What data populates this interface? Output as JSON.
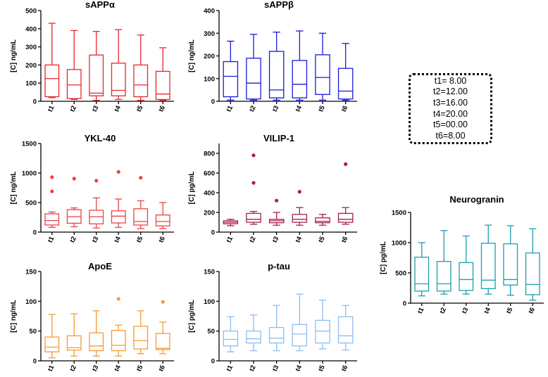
{
  "legend": {
    "lines": [
      "t1= 8.00",
      "t2=12.00",
      "t3=16.00",
      "t4=20.00",
      "t5=00.00",
      "t6=8.00"
    ]
  },
  "chart_data": [
    {
      "type": "box",
      "title": "sAPPα",
      "ylabel": "[C] ng/mL",
      "ylim": [
        0,
        500
      ],
      "yticks": [
        0,
        100,
        200,
        300,
        400,
        500
      ],
      "color": "#e8262b",
      "categories": [
        "t1",
        "t2",
        "t3",
        "t4",
        "t5",
        "t6"
      ],
      "boxes": [
        {
          "min": 20,
          "q1": 25,
          "median": 125,
          "q3": 200,
          "max": 430,
          "outliers": []
        },
        {
          "min": 10,
          "q1": 15,
          "median": 90,
          "q3": 175,
          "max": 390,
          "outliers": []
        },
        {
          "min": 5,
          "q1": 30,
          "median": 45,
          "q3": 255,
          "max": 385,
          "outliers": []
        },
        {
          "min": 10,
          "q1": 30,
          "median": 60,
          "q3": 210,
          "max": 395,
          "outliers": []
        },
        {
          "min": 5,
          "q1": 25,
          "median": 90,
          "q3": 200,
          "max": 365,
          "outliers": []
        },
        {
          "min": 5,
          "q1": 10,
          "median": 40,
          "q3": 165,
          "max": 295,
          "outliers": []
        }
      ]
    },
    {
      "type": "box",
      "title": "sAPPβ",
      "ylabel": "[C] ng/mL",
      "ylim": [
        0,
        400
      ],
      "yticks": [
        0,
        100,
        200,
        300,
        400
      ],
      "color": "#1a1adb",
      "categories": [
        "t1",
        "t2",
        "t3",
        "t4",
        "t5",
        "t6"
      ],
      "boxes": [
        {
          "min": 5,
          "q1": 20,
          "median": 110,
          "q3": 175,
          "max": 265,
          "outliers": []
        },
        {
          "min": 5,
          "q1": 10,
          "median": 80,
          "q3": 190,
          "max": 295,
          "outliers": []
        },
        {
          "min": 5,
          "q1": 15,
          "median": 50,
          "q3": 220,
          "max": 305,
          "outliers": []
        },
        {
          "min": 5,
          "q1": 15,
          "median": 75,
          "q3": 180,
          "max": 310,
          "outliers": []
        },
        {
          "min": 5,
          "q1": 30,
          "median": 105,
          "q3": 205,
          "max": 300,
          "outliers": []
        },
        {
          "min": 5,
          "q1": 10,
          "median": 45,
          "q3": 145,
          "max": 255,
          "outliers": []
        }
      ]
    },
    {
      "type": "box",
      "title": "YKL-40",
      "ylabel": "[C] ng/mL",
      "ylim": [
        0,
        1500
      ],
      "yticks": [
        0,
        500,
        1000,
        1500
      ],
      "color": "#ee4144",
      "categories": [
        "t1",
        "t2",
        "t3",
        "t4",
        "t5",
        "t6"
      ],
      "boxes": [
        {
          "min": 80,
          "q1": 120,
          "median": 195,
          "q3": 310,
          "max": 340,
          "outliers": [
            690,
            930
          ]
        },
        {
          "min": 90,
          "q1": 150,
          "median": 260,
          "q3": 380,
          "max": 410,
          "outliers": [
            905
          ]
        },
        {
          "min": 70,
          "q1": 140,
          "median": 260,
          "q3": 370,
          "max": 580,
          "outliers": [
            870
          ]
        },
        {
          "min": 80,
          "q1": 155,
          "median": 270,
          "q3": 360,
          "max": 560,
          "outliers": [
            1020
          ]
        },
        {
          "min": 60,
          "q1": 120,
          "median": 180,
          "q3": 395,
          "max": 530,
          "outliers": [
            920
          ]
        },
        {
          "min": 60,
          "q1": 105,
          "median": 180,
          "q3": 290,
          "max": 500,
          "outliers": []
        }
      ]
    },
    {
      "type": "box",
      "title": "VILIP-1",
      "ylabel": "[C] pg/mL",
      "ylim": [
        0,
        900
      ],
      "yticks": [
        0,
        200,
        400,
        600,
        800
      ],
      "color": "#a61e52",
      "categories": [
        "t1",
        "t2",
        "t3",
        "t4",
        "t5",
        "t6"
      ],
      "boxes": [
        {
          "min": 65,
          "q1": 85,
          "median": 100,
          "q3": 115,
          "max": 130,
          "outliers": []
        },
        {
          "min": 80,
          "q1": 100,
          "median": 130,
          "q3": 190,
          "max": 210,
          "outliers": [
            500,
            780
          ]
        },
        {
          "min": 70,
          "q1": 95,
          "median": 115,
          "q3": 130,
          "max": 200,
          "outliers": [
            320
          ]
        },
        {
          "min": 70,
          "q1": 100,
          "median": 130,
          "q3": 180,
          "max": 250,
          "outliers": [
            410
          ]
        },
        {
          "min": 70,
          "q1": 95,
          "median": 110,
          "q3": 145,
          "max": 180,
          "outliers": []
        },
        {
          "min": 80,
          "q1": 100,
          "median": 130,
          "q3": 190,
          "max": 250,
          "outliers": [
            690
          ]
        }
      ]
    },
    {
      "type": "box",
      "title": "ApoE",
      "ylabel": "[C] ng/mL",
      "ylim": [
        0,
        150
      ],
      "yticks": [
        0,
        50,
        100,
        150
      ],
      "color": "#f79a35",
      "categories": [
        "t1",
        "t2",
        "t3",
        "t4",
        "t5",
        "t6"
      ],
      "boxes": [
        {
          "min": 5,
          "q1": 15,
          "median": 23,
          "q3": 40,
          "max": 78,
          "outliers": []
        },
        {
          "min": 8,
          "q1": 18,
          "median": 22,
          "q3": 42,
          "max": 79,
          "outliers": []
        },
        {
          "min": 8,
          "q1": 17,
          "median": 25,
          "q3": 47,
          "max": 84,
          "outliers": []
        },
        {
          "min": 8,
          "q1": 17,
          "median": 26,
          "q3": 51,
          "max": 60,
          "outliers": [
            104
          ]
        },
        {
          "min": 12,
          "q1": 20,
          "median": 34,
          "q3": 58,
          "max": 84,
          "outliers": []
        },
        {
          "min": 12,
          "q1": 19,
          "median": 21,
          "q3": 46,
          "max": 65,
          "outliers": [
            99
          ]
        }
      ]
    },
    {
      "type": "box",
      "title": "p-tau",
      "ylabel": "[C] pg/mL",
      "ylim": [
        0,
        150
      ],
      "yticks": [
        0,
        50,
        100,
        150
      ],
      "color": "#8fbdf0",
      "categories": [
        "t1",
        "t2",
        "t3",
        "t4",
        "t5",
        "t6"
      ],
      "boxes": [
        {
          "min": 15,
          "q1": 25,
          "median": 36,
          "q3": 50,
          "max": 74,
          "outliers": []
        },
        {
          "min": 17,
          "q1": 30,
          "median": 37,
          "q3": 50,
          "max": 77,
          "outliers": []
        },
        {
          "min": 17,
          "q1": 30,
          "median": 38,
          "q3": 56,
          "max": 93,
          "outliers": []
        },
        {
          "min": 17,
          "q1": 25,
          "median": 45,
          "q3": 61,
          "max": 112,
          "outliers": []
        },
        {
          "min": 20,
          "q1": 30,
          "median": 50,
          "q3": 68,
          "max": 102,
          "outliers": []
        },
        {
          "min": 18,
          "q1": 30,
          "median": 42,
          "q3": 74,
          "max": 93,
          "outliers": []
        }
      ]
    },
    {
      "type": "box",
      "title": "Neurogranin",
      "ylabel": "[C] pg/mL",
      "ylim": [
        0,
        1500
      ],
      "yticks": [
        0,
        500,
        1000,
        1500
      ],
      "color": "#19a0ae",
      "categories": [
        "t1",
        "t2",
        "t3",
        "t4",
        "t5",
        "t6"
      ],
      "boxes": [
        {
          "min": 120,
          "q1": 200,
          "median": 320,
          "q3": 760,
          "max": 1000,
          "outliers": []
        },
        {
          "min": 150,
          "q1": 200,
          "median": 320,
          "q3": 690,
          "max": 1200,
          "outliers": []
        },
        {
          "min": 150,
          "q1": 210,
          "median": 390,
          "q3": 670,
          "max": 1110,
          "outliers": []
        },
        {
          "min": 150,
          "q1": 240,
          "median": 380,
          "q3": 990,
          "max": 1290,
          "outliers": []
        },
        {
          "min": 130,
          "q1": 300,
          "median": 390,
          "q3": 980,
          "max": 1280,
          "outliers": []
        },
        {
          "min": 50,
          "q1": 140,
          "median": 310,
          "q3": 830,
          "max": 1230,
          "outliers": []
        }
      ]
    }
  ]
}
